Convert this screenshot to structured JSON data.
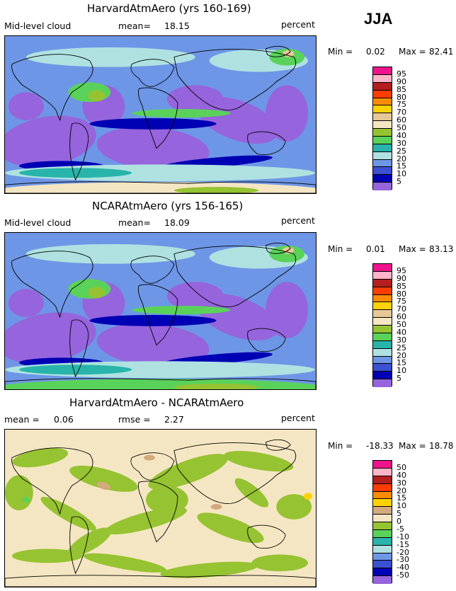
{
  "season": "JJA",
  "unit_label": "percent",
  "panels": [
    {
      "title": "HarvardAtmAero (yrs 160-169)",
      "left_label": "Mid-level cloud",
      "stat1_label": "mean=",
      "stat1_value": "18.15",
      "stat2_label": "",
      "stat2_value": "",
      "min_label": "Min =",
      "min_value": "0.02",
      "max_label": "Max =",
      "max_value": "82.41"
    },
    {
      "title": "NCARAtmAero (yrs 156-165)",
      "left_label": "Mid-level cloud",
      "stat1_label": "mean=",
      "stat1_value": "18.09",
      "stat2_label": "",
      "stat2_value": "",
      "min_label": "Min =",
      "min_value": "0.01",
      "max_label": "Max =",
      "max_value": "83.13"
    },
    {
      "title": "HarvardAtmAero - NCARAtmAero",
      "left_label": "mean =",
      "stat1_label": "",
      "stat1_value": "0.06",
      "stat2_label": "rmse =",
      "stat2_value": "2.27",
      "min_label": "Min =",
      "min_value": "-18.33",
      "max_label": "Max =",
      "max_value": "18.78"
    }
  ],
  "chart_data": [
    {
      "type": "heatmap",
      "title": "HarvardAtmAero (yrs 160-169)",
      "variable": "Mid-level cloud",
      "units": "percent",
      "mean": 18.15,
      "min": 0.02,
      "max": 82.41,
      "colorbar_levels": [
        "95",
        "90",
        "85",
        "80",
        "75",
        "70",
        "60",
        "50",
        "40",
        "30",
        "25",
        "20",
        "15",
        "10",
        "5"
      ],
      "colorbar_colors": [
        "#f0148c",
        "#ffb4c8",
        "#b41e1e",
        "#ff3c00",
        "#ff8c00",
        "#ffd200",
        "#e6c896",
        "#f5e6c3",
        "#96c332",
        "#5ad25a",
        "#28b4aa",
        "#afe1e1",
        "#6e96e6",
        "#3c50d2",
        "#0000b4",
        "#9664dc"
      ]
    },
    {
      "type": "heatmap",
      "title": "NCARAtmAero (yrs 156-165)",
      "variable": "Mid-level cloud",
      "units": "percent",
      "mean": 18.09,
      "min": 0.01,
      "max": 83.13,
      "colorbar_levels": [
        "95",
        "90",
        "85",
        "80",
        "75",
        "70",
        "60",
        "50",
        "40",
        "30",
        "25",
        "20",
        "15",
        "10",
        "5"
      ],
      "colorbar_colors": [
        "#f0148c",
        "#ffb4c8",
        "#b41e1e",
        "#ff3c00",
        "#ff8c00",
        "#ffd200",
        "#e6c896",
        "#f5e6c3",
        "#96c332",
        "#5ad25a",
        "#28b4aa",
        "#afe1e1",
        "#6e96e6",
        "#3c50d2",
        "#0000b4",
        "#9664dc"
      ]
    },
    {
      "type": "heatmap",
      "title": "HarvardAtmAero - NCARAtmAero",
      "units": "percent",
      "mean": 0.06,
      "rmse": 2.27,
      "min": -18.33,
      "max": 18.78,
      "colorbar_levels": [
        "50",
        "40",
        "30",
        "20",
        "15",
        "10",
        "5",
        "0",
        "-5",
        "-10",
        "-15",
        "-20",
        "-30",
        "-40",
        "-50"
      ],
      "colorbar_colors": [
        "#f0148c",
        "#ffb4c8",
        "#b41e1e",
        "#ff3c00",
        "#ff8c00",
        "#ffd200",
        "#d2aa7d",
        "#f5e6c3",
        "#96c332",
        "#5ad25a",
        "#28b4aa",
        "#afe1e1",
        "#6e96e6",
        "#3c50d2",
        "#0000b4",
        "#9664dc"
      ]
    }
  ]
}
